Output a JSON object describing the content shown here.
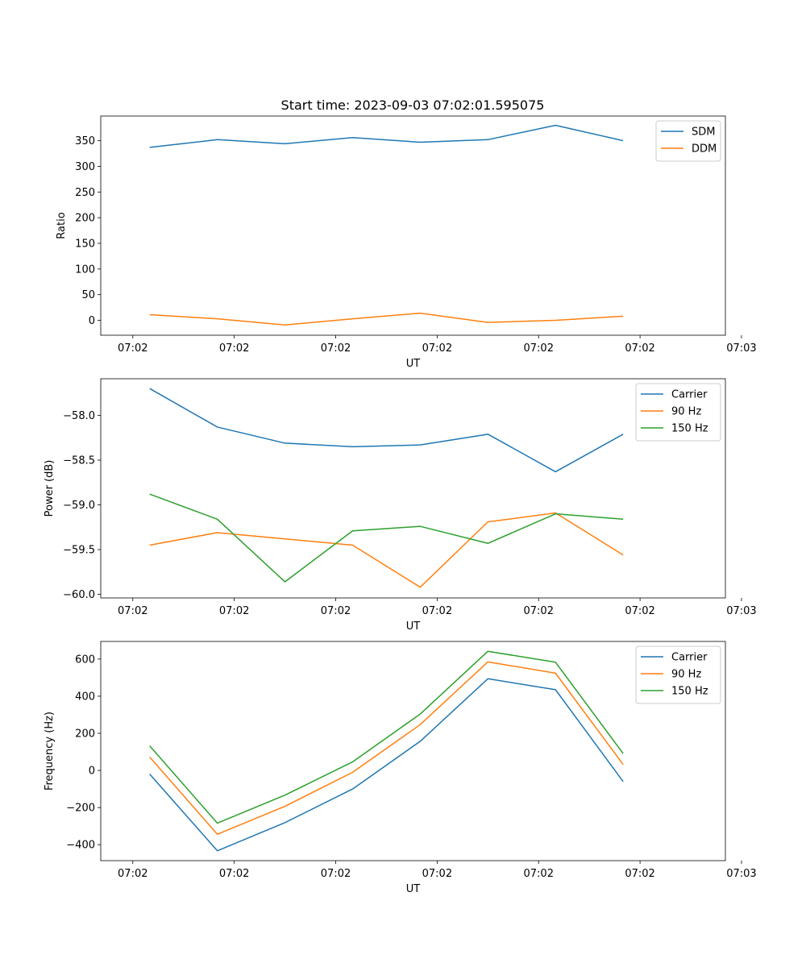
{
  "title": "Start time: 2023-09-03 07:02:01.595075",
  "colors": {
    "blue": "#1f77b4",
    "orange": "#ff7f0e",
    "green": "#2ca02c"
  },
  "chart_data": [
    {
      "type": "line",
      "xlabel": "UT",
      "ylabel": "Ratio",
      "x": [
        1,
        2,
        3,
        4,
        5,
        6,
        7,
        8
      ],
      "xlim": [
        0.276,
        9.512
      ],
      "xticks": [
        0.75,
        2.25,
        3.75,
        5.25,
        6.75,
        8.25,
        9.75
      ],
      "xticklabels": [
        "07:02",
        "07:02",
        "07:02",
        "07:02",
        "07:02",
        "07:02",
        "07:03"
      ],
      "ylim": [
        -29,
        398
      ],
      "yticks": [
        0,
        50,
        100,
        150,
        200,
        250,
        300,
        350
      ],
      "yticklabels": [
        "0",
        "50",
        "100",
        "150",
        "200",
        "250",
        "300",
        "350"
      ],
      "legend_position": "upper-right",
      "series": [
        {
          "name": "SDM",
          "color": "#1f77b4",
          "values": [
            337,
            352,
            344,
            356,
            347,
            352,
            380,
            350
          ]
        },
        {
          "name": "DDM",
          "color": "#ff7f0e",
          "values": [
            11,
            3,
            -9,
            3,
            14,
            -4,
            0,
            8
          ]
        }
      ]
    },
    {
      "type": "line",
      "xlabel": "UT",
      "ylabel": "Power (dB)",
      "x": [
        1,
        2,
        3,
        4,
        5,
        6,
        7,
        8
      ],
      "xlim": [
        0.276,
        9.512
      ],
      "xticks": [
        0.75,
        2.25,
        3.75,
        5.25,
        6.75,
        8.25,
        9.75
      ],
      "xticklabels": [
        "07:02",
        "07:02",
        "07:02",
        "07:02",
        "07:02",
        "07:02",
        "07:03"
      ],
      "ylim": [
        -60.04,
        -57.59
      ],
      "yticks": [
        -60.0,
        -59.5,
        -59.0,
        -58.5,
        -58.0
      ],
      "yticklabels": [
        "−60.0",
        "−59.5",
        "−59.0",
        "−58.5",
        "−58.0"
      ],
      "legend_position": "upper-right",
      "series": [
        {
          "name": "Carrier",
          "color": "#1f77b4",
          "values": [
            -57.7,
            -58.13,
            -58.31,
            -58.35,
            -58.33,
            -58.21,
            -58.63,
            -58.21
          ]
        },
        {
          "name": "90 Hz",
          "color": "#ff7f0e",
          "values": [
            -59.45,
            -59.31,
            -59.38,
            -59.45,
            -59.92,
            -59.19,
            -59.09,
            -59.56
          ]
        },
        {
          "name": "150 Hz",
          "color": "#2ca02c",
          "values": [
            -58.88,
            -59.16,
            -59.86,
            -59.29,
            -59.24,
            -59.43,
            -59.1,
            -59.16
          ]
        }
      ]
    },
    {
      "type": "line",
      "xlabel": "UT",
      "ylabel": "Frequency (Hz)",
      "x": [
        1,
        2,
        3,
        4,
        5,
        6,
        7,
        8
      ],
      "xlim": [
        0.276,
        9.512
      ],
      "xticks": [
        0.75,
        2.25,
        3.75,
        5.25,
        6.75,
        8.25,
        9.75
      ],
      "xticklabels": [
        "07:02",
        "07:02",
        "07:02",
        "07:02",
        "07:02",
        "07:02",
        "07:03"
      ],
      "ylim": [
        -486,
        695
      ],
      "yticks": [
        -400,
        -200,
        0,
        200,
        400,
        600
      ],
      "yticklabels": [
        "−400",
        "−200",
        "0",
        "200",
        "400",
        "600"
      ],
      "legend_position": "upper-right",
      "series": [
        {
          "name": "Carrier",
          "color": "#1f77b4",
          "values": [
            -20,
            -433,
            -281,
            -100,
            157,
            494,
            435,
            -60
          ]
        },
        {
          "name": "90 Hz",
          "color": "#ff7f0e",
          "values": [
            72,
            -344,
            -193,
            -10,
            247,
            585,
            524,
            32
          ]
        },
        {
          "name": "150 Hz",
          "color": "#2ca02c",
          "values": [
            132,
            -284,
            -133,
            46,
            304,
            642,
            583,
            91
          ]
        }
      ]
    }
  ]
}
